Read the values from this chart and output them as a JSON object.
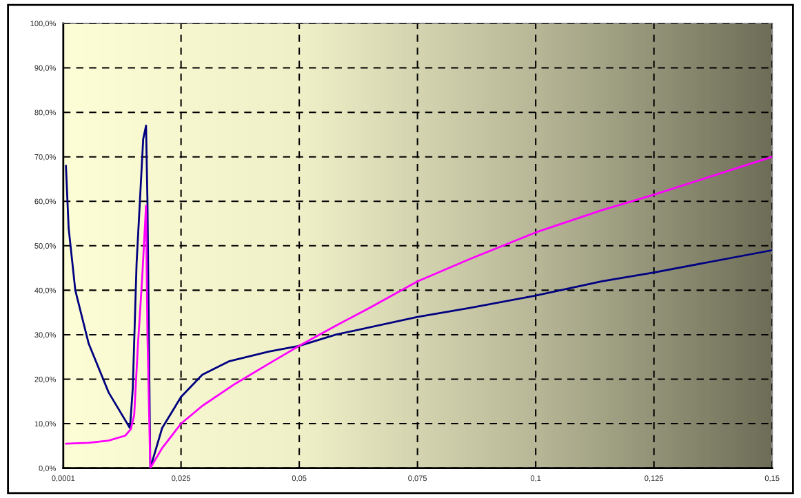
{
  "chart_data": {
    "type": "line",
    "x": [
      0.00066,
      0.00123,
      0.00264,
      0.00547,
      0.0097,
      0.0142,
      0.0148,
      0.0156,
      0.0163,
      0.017,
      0.0176,
      0.0179,
      0.0185,
      0.021,
      0.025,
      0.0295,
      0.0351,
      0.0436,
      0.05,
      0.0577,
      0.075,
      0.086,
      0.1,
      0.114,
      0.125,
      0.15
    ],
    "series": [
      {
        "color": "#000080",
        "values": [
          68,
          54,
          40,
          28,
          17,
          9,
          18,
          46,
          60,
          74,
          77,
          60,
          0,
          9,
          16,
          21,
          24,
          26.2,
          27.5,
          30,
          34,
          36,
          38.8,
          42,
          44,
          49
        ]
      },
      {
        "color": "#ff00ff",
        "x": [
          0.00066,
          0.00547,
          0.0097,
          0.0132,
          0.0144,
          0.0151,
          0.0159,
          0.0168,
          0.0176,
          0.0179,
          0.0185,
          0.021,
          0.025,
          0.0295,
          0.0365,
          0.0436,
          0.05,
          0.0577,
          0.0648,
          0.075,
          0.086,
          0.1,
          0.114,
          0.125,
          0.15
        ],
        "values": [
          5.5,
          5.7,
          6.2,
          7.3,
          8.8,
          12,
          28,
          43,
          59,
          30,
          0,
          4.5,
          10,
          14,
          19,
          23.5,
          27.5,
          32,
          36,
          42,
          47,
          53,
          58,
          61.5,
          70
        ]
      }
    ],
    "xlim": [
      0.0001,
      0.15
    ],
    "xticks": [
      {
        "value": 0.0001,
        "label": "0,0001"
      },
      {
        "value": 0.025,
        "label": "0,025"
      },
      {
        "value": 0.05,
        "label": "0,05"
      },
      {
        "value": 0.075,
        "label": "0,075"
      },
      {
        "value": 0.1,
        "label": "0,1"
      },
      {
        "value": 0.125,
        "label": "0,125"
      },
      {
        "value": 0.15,
        "label": "0,15"
      }
    ],
    "ylim": [
      0,
      100
    ],
    "yticks": [
      {
        "value": 0,
        "label": "0,0%"
      },
      {
        "value": 10,
        "label": "10,0%"
      },
      {
        "value": 20,
        "label": "20,0%"
      },
      {
        "value": 30,
        "label": "30,0%"
      },
      {
        "value": 40,
        "label": "40,0%"
      },
      {
        "value": 50,
        "label": "50,0%"
      },
      {
        "value": 60,
        "label": "60,0%"
      },
      {
        "value": 70,
        "label": "70,0%"
      },
      {
        "value": 80,
        "label": "80,0%"
      },
      {
        "value": 90,
        "label": "90,0%"
      },
      {
        "value": 100,
        "label": "100,0%"
      }
    ],
    "grid": true,
    "line_style": "solid"
  }
}
